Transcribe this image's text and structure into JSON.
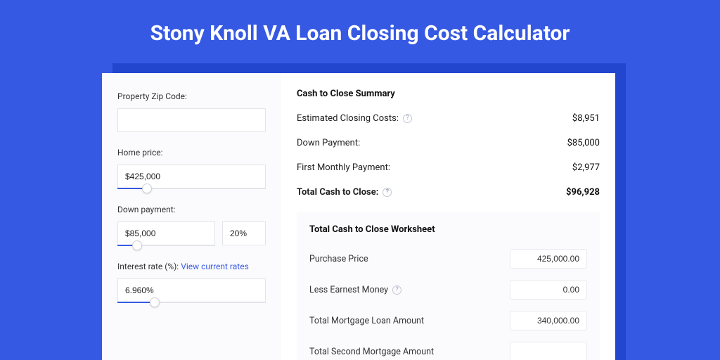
{
  "page": {
    "title": "Stony Knoll VA Loan Closing Cost Calculator",
    "bg_color": "#3659e3",
    "shadow_color": "#2346cf",
    "card_bg": "#ffffff",
    "panel_bg": "#fbfbfd"
  },
  "form": {
    "zip": {
      "label": "Property Zip Code:",
      "value": ""
    },
    "home_price": {
      "label": "Home price:",
      "value": "$425,000",
      "slider_pct": 20
    },
    "down_payment": {
      "label": "Down payment:",
      "amount": "$85,000",
      "pct": "20%",
      "slider_pct": 20
    },
    "interest_rate": {
      "label": "Interest rate (%): ",
      "link_text": "View current rates",
      "value": "6.960%",
      "slider_pct": 25
    }
  },
  "summary": {
    "title": "Cash to Close Summary",
    "rows": [
      {
        "label": "Estimated Closing Costs:",
        "help": true,
        "value": "$8,951",
        "bold": false
      },
      {
        "label": "Down Payment:",
        "help": false,
        "value": "$85,000",
        "bold": false
      },
      {
        "label": "First Monthly Payment:",
        "help": false,
        "value": "$2,977",
        "bold": false
      },
      {
        "label": "Total Cash to Close:",
        "help": true,
        "value": "$96,928",
        "bold": true
      }
    ]
  },
  "worksheet": {
    "title": "Total Cash to Close Worksheet",
    "rows": [
      {
        "label": "Purchase Price",
        "help": false,
        "value": "425,000.00"
      },
      {
        "label": "Less Earnest Money",
        "help": true,
        "value": "0.00"
      },
      {
        "label": "Total Mortgage Loan Amount",
        "help": false,
        "value": "340,000.00"
      },
      {
        "label": "Total Second Mortgage Amount",
        "help": false,
        "value": ""
      }
    ]
  },
  "colors": {
    "accent": "#3659e3",
    "border": "#e2e4ea",
    "text": "#222222",
    "muted": "#9aa0b0"
  }
}
